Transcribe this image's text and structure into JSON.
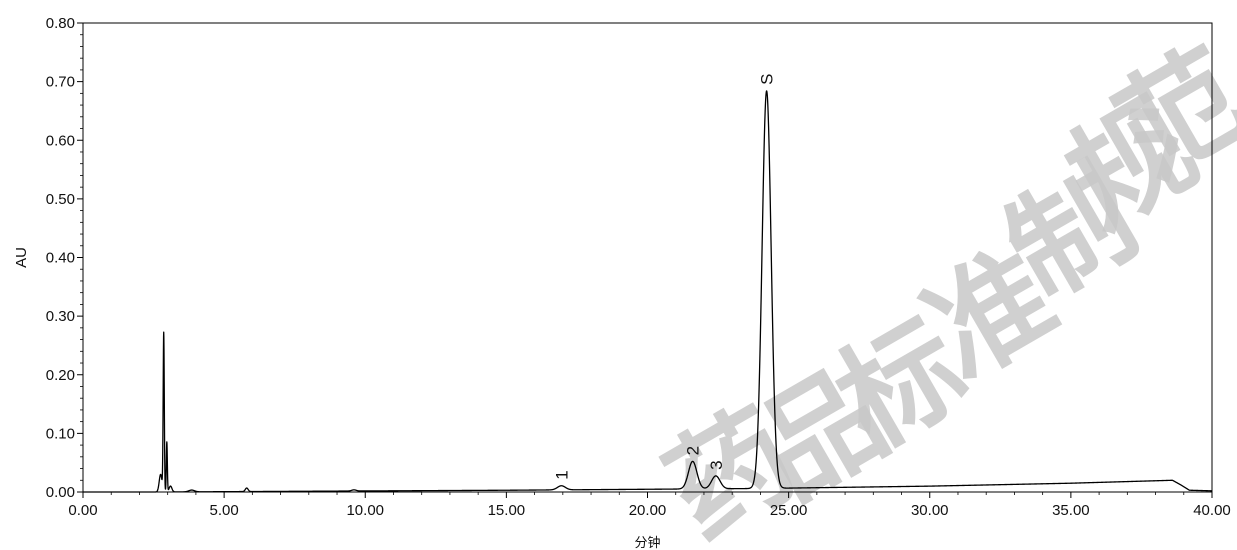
{
  "chart_data": {
    "type": "line",
    "title": "",
    "xlabel": "分钟",
    "ylabel": "AU",
    "xlim": [
      0,
      40
    ],
    "ylim": [
      0,
      0.8
    ],
    "x_ticks": [
      "0.00",
      "5.00",
      "10.00",
      "15.00",
      "20.00",
      "25.00",
      "30.00",
      "35.00",
      "40.00"
    ],
    "y_ticks": [
      "0.00",
      "0.10",
      "0.20",
      "0.30",
      "0.40",
      "0.50",
      "0.60",
      "0.70",
      "0.80"
    ],
    "grid": false,
    "baseline": [
      [
        0,
        0.0
      ],
      [
        2.6,
        0.0
      ],
      [
        15.0,
        0.003
      ],
      [
        24.0,
        0.006
      ],
      [
        30.0,
        0.01
      ],
      [
        35.0,
        0.015
      ],
      [
        38.6,
        0.02
      ],
      [
        38.9,
        0.012
      ],
      [
        39.2,
        0.003
      ],
      [
        40.0,
        0.002
      ]
    ],
    "peaks": [
      {
        "label": "",
        "rt": 2.75,
        "height": 0.03,
        "width": 0.05
      },
      {
        "label": "",
        "rt": 2.86,
        "height": 0.27,
        "width": 0.02
      },
      {
        "label": "",
        "rt": 2.97,
        "height": 0.085,
        "width": 0.018
      },
      {
        "label": "",
        "rt": 3.1,
        "height": 0.01,
        "width": 0.05
      },
      {
        "label": "",
        "rt": 3.85,
        "height": 0.003,
        "width": 0.1
      },
      {
        "label": "",
        "rt": 5.8,
        "height": 0.006,
        "width": 0.05
      },
      {
        "label": "",
        "rt": 9.6,
        "height": 0.002,
        "width": 0.08
      },
      {
        "label": "1",
        "rt": 16.95,
        "height": 0.007,
        "width": 0.14
      },
      {
        "label": "2",
        "rt": 21.6,
        "height": 0.047,
        "width": 0.15
      },
      {
        "label": "3",
        "rt": 22.42,
        "height": 0.022,
        "width": 0.15
      },
      {
        "label": "S",
        "rt": 24.22,
        "height": 0.678,
        "width": 0.16
      }
    ],
    "watermark": "药品标准制规范"
  }
}
